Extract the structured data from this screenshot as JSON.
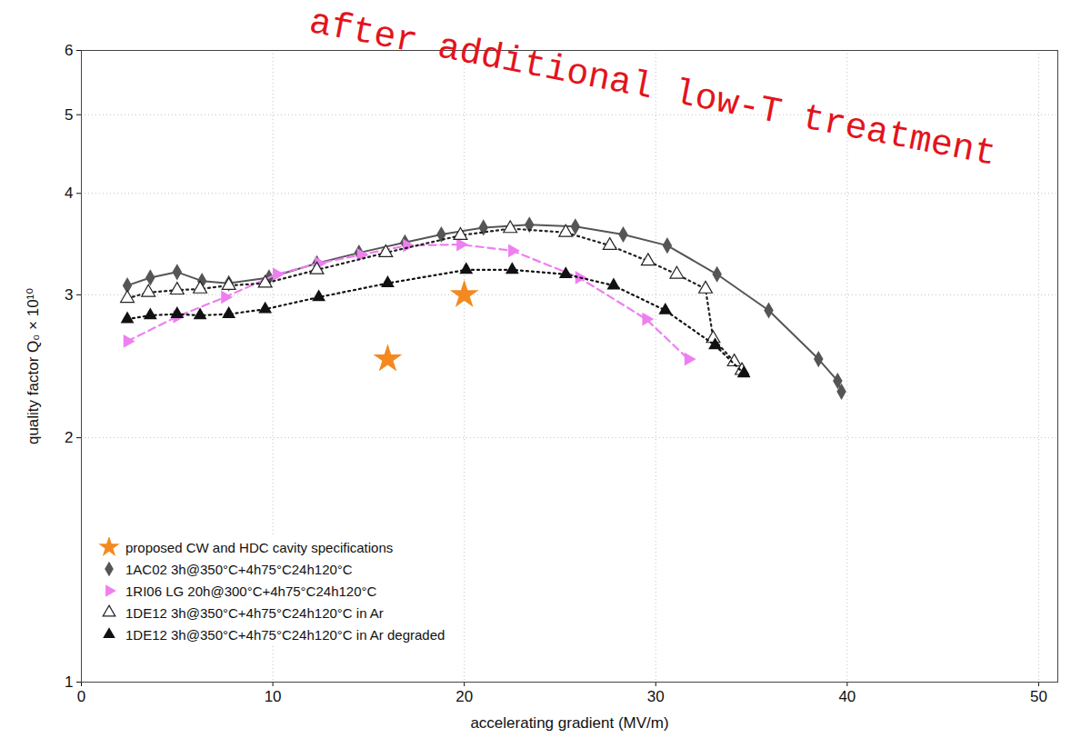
{
  "chart_data": {
    "type": "line",
    "annotations": [
      "after additional low-T treatment"
    ],
    "x_label": "accelerating gradient (MV/m)",
    "y_label": "quality factor Q₀ × 10¹⁰",
    "xlim": [
      0,
      51
    ],
    "xticks": [
      0,
      10,
      20,
      30,
      40,
      50
    ],
    "ylim": [
      1,
      6
    ],
    "yticks": [
      1,
      2,
      3,
      4,
      5,
      6
    ],
    "log": "y",
    "grid": true,
    "legend": "lower left",
    "series": [
      {
        "name": "proposed CW and HDC cavity specifications",
        "type": "scatter",
        "color": "#f5891f",
        "marker": "star",
        "x": [
          16,
          20
        ],
        "values": [
          2.5,
          3.0
        ]
      },
      {
        "name": "1AC02 3h@350°C+4h75°C24h120°C",
        "type": "line",
        "color": "#555555",
        "marker": "diamond",
        "line_style": "solid",
        "x": [
          2.4,
          3.6,
          5,
          6.3,
          7.7,
          9.8,
          12.3,
          14.5,
          16.9,
          18.8,
          21,
          23.4,
          25.8,
          28.3,
          30.6,
          33.2,
          35.9,
          38.5,
          39.5,
          39.7
        ],
        "values": [
          3.08,
          3.15,
          3.2,
          3.12,
          3.1,
          3.15,
          3.28,
          3.38,
          3.48,
          3.56,
          3.63,
          3.66,
          3.64,
          3.56,
          3.45,
          3.18,
          2.87,
          2.5,
          2.35,
          2.28
        ]
      },
      {
        "name": "1RI06 LG 20h@300°C+4h75°C24h120°C",
        "type": "line",
        "color": "#ee7ff0",
        "marker": "triangle-right",
        "line_style": "dashed",
        "x": [
          2.4,
          5,
          7.5,
          10.2,
          12.4,
          14.6,
          17,
          19.8,
          22.5,
          26,
          29.5,
          31.7
        ],
        "values": [
          2.63,
          2.82,
          2.98,
          3.18,
          3.28,
          3.36,
          3.45,
          3.46,
          3.4,
          3.15,
          2.8,
          2.5
        ]
      },
      {
        "name": "1DE12 3h@350°C+4h75°C24h120°C in Ar",
        "type": "line",
        "color": "#222222",
        "marker": "triangle-open",
        "line_style": "dotted",
        "x": [
          2.4,
          3.5,
          5,
          6.2,
          7.7,
          9.6,
          12.3,
          15.9,
          19.8,
          22.4,
          25.3,
          27.6,
          29.6,
          31.1,
          32.6,
          33,
          34.1,
          34.5
        ],
        "values": [
          2.97,
          3.02,
          3.04,
          3.05,
          3.08,
          3.1,
          3.22,
          3.38,
          3.55,
          3.62,
          3.58,
          3.45,
          3.3,
          3.18,
          3.05,
          2.65,
          2.48,
          2.42
        ]
      },
      {
        "name": "1DE12 3h@350°C+4h75°C24h120°C in Ar degraded",
        "type": "line",
        "color": "#111111",
        "marker": "triangle",
        "line_style": "dotted",
        "x": [
          2.4,
          3.6,
          5,
          6.2,
          7.7,
          9.6,
          12.4,
          16,
          20.1,
          22.5,
          25.3,
          27.8,
          30.5,
          33.1,
          34.6
        ],
        "values": [
          2.8,
          2.83,
          2.84,
          2.83,
          2.84,
          2.88,
          2.98,
          3.1,
          3.22,
          3.22,
          3.18,
          3.08,
          2.87,
          2.6,
          2.4
        ]
      }
    ]
  }
}
